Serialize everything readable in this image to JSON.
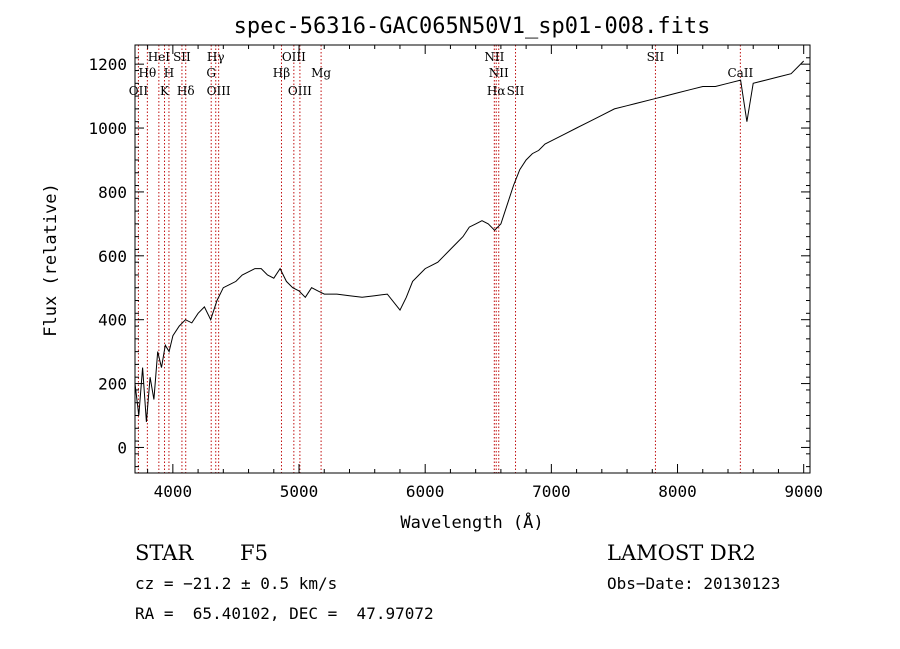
{
  "chart_data": {
    "type": "line",
    "title": "spec-56316-GAC065N50V1_sp01-008.fits",
    "xlabel": "Wavelength (Å)",
    "ylabel": "Flux (relative)",
    "xlim": [
      3700,
      9050
    ],
    "ylim": [
      -80,
      1260
    ],
    "xticks": [
      4000,
      5000,
      6000,
      7000,
      8000,
      9000
    ],
    "yticks": [
      0,
      200,
      400,
      600,
      800,
      1000,
      1200
    ],
    "xtick_labels": [
      "4000",
      "5000",
      "6000",
      "7000",
      "8000",
      "9000"
    ],
    "ytick_labels": [
      "0",
      "200",
      "400",
      "600",
      "800",
      "1000",
      "1200"
    ],
    "grid": false,
    "series": [
      {
        "x": [
          3700,
          3730,
          3760,
          3790,
          3820,
          3850,
          3880,
          3910,
          3940,
          3970,
          4000,
          4050,
          4100,
          4150,
          4200,
          4250,
          4300,
          4350,
          4400,
          4450,
          4500,
          4550,
          4600,
          4650,
          4700,
          4750,
          4800,
          4850,
          4900,
          4950,
          5000,
          5050,
          5100,
          5150,
          5200,
          5300,
          5400,
          5500,
          5600,
          5700,
          5800,
          5850,
          5900,
          5950,
          6000,
          6050,
          6100,
          6150,
          6200,
          6250,
          6300,
          6350,
          6400,
          6450,
          6500,
          6550,
          6600,
          6650,
          6700,
          6750,
          6800,
          6850,
          6900,
          6950,
          7000,
          7100,
          7200,
          7300,
          7400,
          7500,
          7600,
          7700,
          7800,
          7900,
          8000,
          8100,
          8200,
          8300,
          8400,
          8500,
          8550,
          8600,
          8700,
          8800,
          8900,
          8950,
          9000
        ],
        "y": [
          200,
          100,
          250,
          80,
          220,
          150,
          300,
          250,
          320,
          300,
          350,
          380,
          400,
          390,
          420,
          440,
          400,
          460,
          500,
          510,
          520,
          540,
          550,
          560,
          560,
          540,
          530,
          560,
          520,
          500,
          490,
          470,
          500,
          490,
          480,
          480,
          475,
          470,
          475,
          480,
          430,
          470,
          520,
          540,
          560,
          570,
          580,
          600,
          620,
          640,
          660,
          690,
          700,
          710,
          700,
          680,
          700,
          760,
          820,
          870,
          900,
          920,
          930,
          950,
          960,
          980,
          1000,
          1020,
          1040,
          1060,
          1070,
          1080,
          1090,
          1100,
          1110,
          1120,
          1130,
          1130,
          1140,
          1150,
          1020,
          1140,
          1150,
          1160,
          1170,
          1190,
          1210
        ]
      }
    ],
    "lines": [
      {
        "x": 3727,
        "labels": [
          "OII"
        ],
        "row": 3
      },
      {
        "x": 3798,
        "labels": [
          "Hθ"
        ],
        "row": 2
      },
      {
        "x": 3889,
        "labels": [
          "HeI"
        ],
        "row": 1
      },
      {
        "x": 3934,
        "labels": [
          "K"
        ],
        "row": 3
      },
      {
        "x": 3969,
        "labels": [
          "H"
        ],
        "row": 2
      },
      {
        "x": 4072,
        "labels": [
          "SII"
        ],
        "row": 1
      },
      {
        "x": 4102,
        "labels": [
          "Hδ"
        ],
        "row": 3
      },
      {
        "x": 4304,
        "labels": [
          "G"
        ],
        "row": 2
      },
      {
        "x": 4340,
        "labels": [
          "Hγ"
        ],
        "row": 1
      },
      {
        "x": 4363,
        "labels": [
          "OIII"
        ],
        "row": 3
      },
      {
        "x": 4861,
        "labels": [
          "Hβ"
        ],
        "row": 2
      },
      {
        "x": 4959,
        "labels": [
          "OIII"
        ],
        "row": 1
      },
      {
        "x": 5007,
        "labels": [
          "OIII"
        ],
        "row": 3
      },
      {
        "x": 5175,
        "labels": [
          "Mg"
        ],
        "row": 2
      },
      {
        "x": 6548,
        "labels": [
          "NII"
        ],
        "row": 1
      },
      {
        "x": 6563,
        "labels": [
          "Hα"
        ],
        "row": 3
      },
      {
        "x": 6583,
        "labels": [
          "NII"
        ],
        "row": 2
      },
      {
        "x": 6716,
        "labels": [
          "SII"
        ],
        "row": 3
      },
      {
        "x": 7825,
        "labels": [
          "SII"
        ],
        "row": 1
      },
      {
        "x": 8498,
        "labels": [
          "CaII"
        ],
        "row": 2
      }
    ]
  },
  "footer": {
    "object_class": "STAR",
    "subclass": "F5",
    "survey": "LAMOST DR2",
    "cz": "cz = −21.2 ± 0.5 km/s",
    "obs_date": "Obs−Date: 20130123",
    "coords": "RA =  65.40102, DEC =  47.97072"
  },
  "colors": {
    "spectrum": "#000000",
    "line_markers": "#c01010",
    "axes": "#000000"
  }
}
